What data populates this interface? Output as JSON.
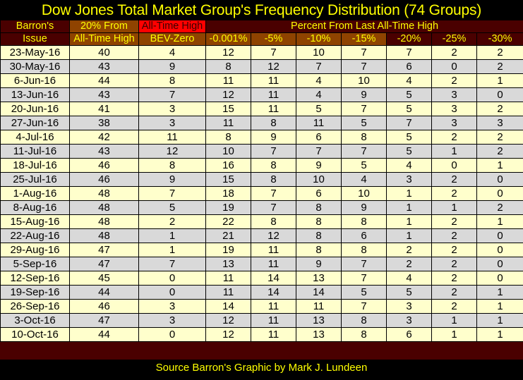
{
  "title": "Dow Jones Total Market Group's Frequency Distribution (74 Groups)",
  "header": {
    "issue_top": "Barron's",
    "issue_bottom": "Issue",
    "col20_top": "20% From",
    "col20_bottom": "All-Time High",
    "ath_top": "All-Time High",
    "ath_bottom": "BEV-Zero",
    "percent_group": "Percent From Last All-Time High",
    "percent_cols": [
      "-0.001%",
      "-5%",
      "-10%",
      "-15%",
      "-20%",
      "-25%",
      "-30%"
    ]
  },
  "rows": [
    [
      "23-May-16",
      "40",
      "4",
      "12",
      "7",
      "10",
      "7",
      "7",
      "2",
      "2"
    ],
    [
      "30-May-16",
      "43",
      "9",
      "8",
      "12",
      "7",
      "7",
      "6",
      "0",
      "2"
    ],
    [
      "6-Jun-16",
      "44",
      "8",
      "11",
      "11",
      "4",
      "10",
      "4",
      "2",
      "1"
    ],
    [
      "13-Jun-16",
      "43",
      "7",
      "12",
      "11",
      "4",
      "9",
      "5",
      "3",
      "0"
    ],
    [
      "20-Jun-16",
      "41",
      "3",
      "15",
      "11",
      "5",
      "7",
      "5",
      "3",
      "2"
    ],
    [
      "27-Jun-16",
      "38",
      "3",
      "11",
      "8",
      "11",
      "5",
      "7",
      "3",
      "3"
    ],
    [
      "4-Jul-16",
      "42",
      "11",
      "8",
      "9",
      "6",
      "8",
      "5",
      "2",
      "2"
    ],
    [
      "11-Jul-16",
      "43",
      "12",
      "10",
      "7",
      "7",
      "7",
      "5",
      "1",
      "2"
    ],
    [
      "18-Jul-16",
      "46",
      "8",
      "16",
      "8",
      "9",
      "5",
      "4",
      "0",
      "1"
    ],
    [
      "25-Jul-16",
      "46",
      "9",
      "15",
      "8",
      "10",
      "4",
      "3",
      "2",
      "0"
    ],
    [
      "1-Aug-16",
      "48",
      "7",
      "18",
      "7",
      "6",
      "10",
      "1",
      "2",
      "0"
    ],
    [
      "8-Aug-16",
      "48",
      "5",
      "19",
      "7",
      "8",
      "9",
      "1",
      "1",
      "2"
    ],
    [
      "15-Aug-16",
      "48",
      "2",
      "22",
      "8",
      "8",
      "8",
      "1",
      "2",
      "1"
    ],
    [
      "22-Aug-16",
      "48",
      "1",
      "21",
      "12",
      "8",
      "6",
      "1",
      "2",
      "0"
    ],
    [
      "29-Aug-16",
      "47",
      "1",
      "19",
      "11",
      "8",
      "8",
      "2",
      "2",
      "0"
    ],
    [
      "5-Sep-16",
      "47",
      "7",
      "13",
      "11",
      "9",
      "7",
      "2",
      "2",
      "0"
    ],
    [
      "12-Sep-16",
      "45",
      "0",
      "11",
      "14",
      "13",
      "7",
      "4",
      "2",
      "0"
    ],
    [
      "19-Sep-16",
      "44",
      "0",
      "11",
      "14",
      "14",
      "5",
      "5",
      "2",
      "1"
    ],
    [
      "26-Sep-16",
      "46",
      "3",
      "14",
      "11",
      "11",
      "7",
      "3",
      "2",
      "1"
    ],
    [
      "3-Oct-16",
      "47",
      "3",
      "12",
      "11",
      "13",
      "8",
      "3",
      "1",
      "1"
    ],
    [
      "10-Oct-16",
      "44",
      "0",
      "12",
      "11",
      "13",
      "8",
      "6",
      "1",
      "1"
    ]
  ],
  "source": "Source Barron's  Graphic by Mark J. Lundeen",
  "colors": {
    "maroon": "#4a0000",
    "brown": "#8f4300",
    "red": "#ff0000",
    "text_yellow": "#ffff00",
    "row_light": "#ffffcc",
    "row_gray": "#d9d9d9"
  }
}
